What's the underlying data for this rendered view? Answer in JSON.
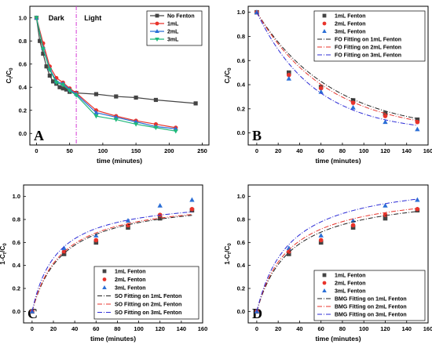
{
  "chart_data": [
    {
      "panel": "A",
      "type": "line",
      "xlabel": "time (minutes)",
      "ylabel": "Ct/C0",
      "xlim": [
        -10,
        260
      ],
      "ylim": [
        -0.1,
        1.1
      ],
      "xticks": [
        0,
        50,
        100,
        150,
        200,
        250
      ],
      "yticks": [
        0.0,
        0.2,
        0.4,
        0.6,
        0.8,
        1.0
      ],
      "legend_position": "top-right",
      "annotations": [
        {
          "text": "Dark",
          "x": 30,
          "y": 1.0
        },
        {
          "text": "Light",
          "x": 85,
          "y": 1.0
        }
      ],
      "vline_x": 60,
      "vline_color": "#d63cd6",
      "series": [
        {
          "name": "No Fenton",
          "color": "#444444",
          "marker": "square",
          "x": [
            0,
            5,
            10,
            15,
            20,
            25,
            30,
            35,
            40,
            45,
            50,
            60,
            90,
            120,
            150,
            180,
            240
          ],
          "y": [
            1.0,
            0.8,
            0.69,
            0.58,
            0.5,
            0.45,
            0.43,
            0.4,
            0.39,
            0.38,
            0.36,
            0.35,
            0.34,
            0.32,
            0.31,
            0.29,
            0.26
          ]
        },
        {
          "name": "1mL",
          "color": "#e8332b",
          "marker": "circle",
          "x": [
            0,
            10,
            20,
            30,
            40,
            50,
            60,
            90,
            120,
            150,
            180,
            210
          ],
          "y": [
            1.0,
            0.78,
            0.58,
            0.48,
            0.44,
            0.39,
            0.35,
            0.2,
            0.15,
            0.11,
            0.08,
            0.05
          ]
        },
        {
          "name": "2mL",
          "color": "#2b6fd6",
          "marker": "triangle",
          "x": [
            0,
            10,
            20,
            30,
            40,
            50,
            60,
            90,
            120,
            150,
            180,
            210
          ],
          "y": [
            1.0,
            0.74,
            0.56,
            0.45,
            0.43,
            0.38,
            0.34,
            0.18,
            0.14,
            0.1,
            0.06,
            0.04
          ]
        },
        {
          "name": "3mL",
          "color": "#1fb87a",
          "marker": "triangle-down",
          "x": [
            0,
            10,
            20,
            30,
            40,
            50,
            60,
            90,
            120,
            150,
            180,
            210
          ],
          "y": [
            1.0,
            0.73,
            0.55,
            0.44,
            0.42,
            0.37,
            0.33,
            0.15,
            0.12,
            0.08,
            0.05,
            0.02
          ]
        }
      ]
    },
    {
      "panel": "B",
      "type": "scatter",
      "xlabel": "time (minutes)",
      "ylabel": "Ct/C0",
      "xlim": [
        -8,
        160
      ],
      "ylim": [
        -0.1,
        1.05
      ],
      "xticks": [
        0,
        20,
        40,
        60,
        80,
        100,
        120,
        140,
        160
      ],
      "yticks": [
        0.0,
        0.2,
        0.4,
        0.6,
        0.8,
        1.0
      ],
      "legend_position": "top-right",
      "series": [
        {
          "name": "1mL Fenton",
          "color": "#444444",
          "marker": "square",
          "x": [
            0,
            30,
            60,
            90,
            120,
            150
          ],
          "y": [
            1.0,
            0.5,
            0.38,
            0.27,
            0.16,
            0.11
          ]
        },
        {
          "name": "2mL Fenton",
          "color": "#e8332b",
          "marker": "circle",
          "x": [
            0,
            30,
            60,
            90,
            120,
            150
          ],
          "y": [
            1.0,
            0.48,
            0.37,
            0.25,
            0.14,
            0.09
          ]
        },
        {
          "name": "3mL Fenton",
          "color": "#2b6fd6",
          "marker": "triangle",
          "x": [
            0,
            30,
            60,
            90,
            120,
            150
          ],
          "y": [
            1.0,
            0.45,
            0.34,
            0.21,
            0.09,
            0.03
          ]
        },
        {
          "name": "FO Fitting on 1mL Fenton",
          "color": "#222222",
          "dash": "6,2,1,2",
          "fit": "fo",
          "k": 0.0142
        },
        {
          "name": "FO Fitting on 2mL Fenton",
          "color": "#e8332b",
          "dash": "6,2,1,2",
          "fit": "fo",
          "k": 0.0152
        },
        {
          "name": "FO Fitting on 3mL Fenton",
          "color": "#2b2bd6",
          "dash": "6,2,1,2",
          "fit": "fo",
          "k": 0.0185
        }
      ]
    },
    {
      "panel": "C",
      "type": "scatter",
      "xlabel": "time (minutes)",
      "ylabel": "1-Ct/C0",
      "xlim": [
        -8,
        160
      ],
      "ylim": [
        -0.1,
        1.1
      ],
      "xticks": [
        0,
        20,
        40,
        60,
        80,
        100,
        120,
        140,
        160
      ],
      "yticks": [
        0.0,
        0.2,
        0.4,
        0.6,
        0.8,
        1.0
      ],
      "legend_position": "bottom-right",
      "series": [
        {
          "name": "1mL Fenton",
          "color": "#444444",
          "marker": "square",
          "x": [
            0,
            30,
            60,
            90,
            120,
            150
          ],
          "y": [
            0.0,
            0.5,
            0.6,
            0.73,
            0.81,
            0.88
          ]
        },
        {
          "name": "2mL Fenton",
          "color": "#e8332b",
          "marker": "circle",
          "x": [
            0,
            30,
            60,
            90,
            120,
            150
          ],
          "y": [
            0.0,
            0.52,
            0.62,
            0.75,
            0.84,
            0.89
          ]
        },
        {
          "name": "3mL Fenton",
          "color": "#2b6fd6",
          "marker": "triangle",
          "x": [
            0,
            30,
            60,
            90,
            120,
            150
          ],
          "y": [
            0.0,
            0.55,
            0.66,
            0.79,
            0.92,
            0.97
          ]
        },
        {
          "name": "SO Fitting on 1mL Fenton",
          "color": "#222222",
          "dash": "6,2,1,2",
          "fit": "so",
          "qe": 1.0,
          "k": 0.034
        },
        {
          "name": "SO Fitting on 2mL Fenton",
          "color": "#e8332b",
          "dash": "6,2,1,2",
          "fit": "so",
          "qe": 1.0,
          "k": 0.036
        },
        {
          "name": "SO Fitting on 3mL Fenton",
          "color": "#2b2bd6",
          "dash": "6,2,1,2",
          "fit": "so",
          "qe": 1.0,
          "k": 0.043
        }
      ]
    },
    {
      "panel": "D",
      "type": "scatter",
      "xlabel": "time (minutes)",
      "ylabel": "1-Ct/C0",
      "xlim": [
        -8,
        160
      ],
      "ylim": [
        -0.1,
        1.1
      ],
      "xticks": [
        0,
        20,
        40,
        60,
        80,
        100,
        120,
        140,
        160
      ],
      "yticks": [
        0.0,
        0.2,
        0.4,
        0.6,
        0.8,
        1.0
      ],
      "legend_position": "bottom-right",
      "series": [
        {
          "name": "1mL Fenton",
          "color": "#444444",
          "marker": "square",
          "x": [
            0,
            30,
            60,
            90,
            120,
            150
          ],
          "y": [
            0.0,
            0.5,
            0.6,
            0.73,
            0.81,
            0.88
          ]
        },
        {
          "name": "2mL Fenton",
          "color": "#e8332b",
          "marker": "circle",
          "x": [
            0,
            30,
            60,
            90,
            120,
            150
          ],
          "y": [
            0.0,
            0.52,
            0.62,
            0.75,
            0.84,
            0.89
          ]
        },
        {
          "name": "3mL Fenton",
          "color": "#2b6fd6",
          "marker": "triangle",
          "x": [
            0,
            30,
            60,
            90,
            120,
            150
          ],
          "y": [
            0.0,
            0.55,
            0.66,
            0.79,
            0.92,
            0.97
          ]
        },
        {
          "name": "BMG Fitting on 1mL Fenton",
          "color": "#222222",
          "dash": "6,2,1,2",
          "fit": "bmg",
          "m": 30,
          "b": 0.95
        },
        {
          "name": "BMG Fitting on 2mL Fenton",
          "color": "#e8332b",
          "dash": "6,2,1,2",
          "fit": "bmg",
          "m": 28,
          "b": 0.93
        },
        {
          "name": "BMG Fitting on 3mL Fenton",
          "color": "#2b2bd6",
          "dash": "6,2,1,2",
          "fit": "bmg",
          "m": 26,
          "b": 0.85
        }
      ]
    }
  ]
}
